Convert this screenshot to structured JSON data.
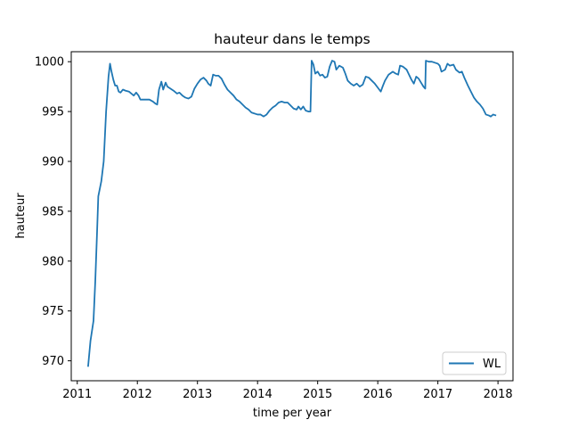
{
  "chart_data": {
    "type": "line",
    "title": "hauteur dans le temps",
    "xlabel": "time per year",
    "ylabel": "hauteur",
    "xlim": [
      2010.9,
      2018.25
    ],
    "ylim": [
      968,
      1001
    ],
    "x_ticks": [
      2011,
      2012,
      2013,
      2014,
      2015,
      2016,
      2017,
      2018
    ],
    "x_tick_labels": [
      "2011",
      "2012",
      "2013",
      "2014",
      "2015",
      "2016",
      "2017",
      "2018"
    ],
    "y_ticks": [
      970,
      975,
      980,
      985,
      990,
      995,
      1000
    ],
    "y_tick_labels": [
      "970",
      "975",
      "980",
      "985",
      "990",
      "995",
      "1000"
    ],
    "grid": false,
    "legend_position": "bottom-right",
    "series": [
      {
        "name": "WL",
        "color": "#1f77b4",
        "points": [
          [
            2011.18,
            969.4
          ],
          [
            2011.22,
            972.0
          ],
          [
            2011.27,
            974.0
          ],
          [
            2011.3,
            978.0
          ],
          [
            2011.33,
            983.0
          ],
          [
            2011.35,
            986.5
          ],
          [
            2011.4,
            988.0
          ],
          [
            2011.44,
            990.0
          ],
          [
            2011.48,
            995.0
          ],
          [
            2011.52,
            998.5
          ],
          [
            2011.545,
            999.8
          ],
          [
            2011.57,
            999.0
          ],
          [
            2011.6,
            998.2
          ],
          [
            2011.63,
            997.6
          ],
          [
            2011.66,
            997.6
          ],
          [
            2011.69,
            997.0
          ],
          [
            2011.72,
            996.9
          ],
          [
            2011.76,
            997.2
          ],
          [
            2011.8,
            997.1
          ],
          [
            2011.86,
            997.0
          ],
          [
            2011.9,
            996.8
          ],
          [
            2011.94,
            996.6
          ],
          [
            2011.98,
            996.9
          ],
          [
            2012.02,
            996.6
          ],
          [
            2012.05,
            996.2
          ],
          [
            2012.1,
            996.2
          ],
          [
            2012.2,
            996.2
          ],
          [
            2012.26,
            996.0
          ],
          [
            2012.3,
            995.8
          ],
          [
            2012.33,
            995.7
          ],
          [
            2012.36,
            997.2
          ],
          [
            2012.4,
            998.0
          ],
          [
            2012.43,
            997.2
          ],
          [
            2012.47,
            997.9
          ],
          [
            2012.5,
            997.5
          ],
          [
            2012.55,
            997.3
          ],
          [
            2012.6,
            997.1
          ],
          [
            2012.66,
            996.8
          ],
          [
            2012.7,
            996.9
          ],
          [
            2012.75,
            996.6
          ],
          [
            2012.8,
            996.4
          ],
          [
            2012.85,
            996.3
          ],
          [
            2012.9,
            996.5
          ],
          [
            2012.95,
            997.3
          ],
          [
            2013.0,
            997.8
          ],
          [
            2013.05,
            998.2
          ],
          [
            2013.1,
            998.4
          ],
          [
            2013.15,
            998.1
          ],
          [
            2013.18,
            997.8
          ],
          [
            2013.22,
            997.6
          ],
          [
            2013.26,
            998.7
          ],
          [
            2013.3,
            998.6
          ],
          [
            2013.35,
            998.6
          ],
          [
            2013.4,
            998.3
          ],
          [
            2013.45,
            997.7
          ],
          [
            2013.5,
            997.2
          ],
          [
            2013.55,
            996.9
          ],
          [
            2013.6,
            996.6
          ],
          [
            2013.65,
            996.2
          ],
          [
            2013.7,
            996.0
          ],
          [
            2013.75,
            995.7
          ],
          [
            2013.8,
            995.4
          ],
          [
            2013.85,
            995.2
          ],
          [
            2013.9,
            994.9
          ],
          [
            2014.0,
            994.7
          ],
          [
            2014.05,
            994.7
          ],
          [
            2014.1,
            994.5
          ],
          [
            2014.15,
            994.7
          ],
          [
            2014.2,
            995.1
          ],
          [
            2014.25,
            995.4
          ],
          [
            2014.3,
            995.6
          ],
          [
            2014.35,
            995.9
          ],
          [
            2014.4,
            996.0
          ],
          [
            2014.45,
            995.9
          ],
          [
            2014.5,
            995.9
          ],
          [
            2014.55,
            995.6
          ],
          [
            2014.6,
            995.3
          ],
          [
            2014.65,
            995.2
          ],
          [
            2014.68,
            995.5
          ],
          [
            2014.72,
            995.2
          ],
          [
            2014.76,
            995.5
          ],
          [
            2014.8,
            995.1
          ],
          [
            2014.85,
            995.0
          ],
          [
            2014.88,
            995.0
          ],
          [
            2014.9,
            1000.1
          ],
          [
            2014.93,
            999.7
          ],
          [
            2014.96,
            998.8
          ],
          [
            2015.0,
            999.0
          ],
          [
            2015.04,
            998.6
          ],
          [
            2015.08,
            998.7
          ],
          [
            2015.12,
            998.4
          ],
          [
            2015.16,
            998.5
          ],
          [
            2015.2,
            999.5
          ],
          [
            2015.24,
            1000.1
          ],
          [
            2015.28,
            1000.0
          ],
          [
            2015.31,
            999.2
          ],
          [
            2015.36,
            999.6
          ],
          [
            2015.42,
            999.4
          ],
          [
            2015.46,
            998.8
          ],
          [
            2015.5,
            998.1
          ],
          [
            2015.55,
            997.8
          ],
          [
            2015.6,
            997.6
          ],
          [
            2015.65,
            997.8
          ],
          [
            2015.7,
            997.5
          ],
          [
            2015.75,
            997.7
          ],
          [
            2015.8,
            998.5
          ],
          [
            2015.85,
            998.4
          ],
          [
            2015.9,
            998.1
          ],
          [
            2015.95,
            997.8
          ],
          [
            2016.0,
            997.4
          ],
          [
            2016.05,
            997.0
          ],
          [
            2016.08,
            997.5
          ],
          [
            2016.12,
            998.1
          ],
          [
            2016.18,
            998.7
          ],
          [
            2016.25,
            999.0
          ],
          [
            2016.3,
            998.8
          ],
          [
            2016.34,
            998.7
          ],
          [
            2016.37,
            999.6
          ],
          [
            2016.42,
            999.5
          ],
          [
            2016.48,
            999.2
          ],
          [
            2016.52,
            998.7
          ],
          [
            2016.56,
            998.2
          ],
          [
            2016.6,
            997.8
          ],
          [
            2016.64,
            998.5
          ],
          [
            2016.68,
            998.3
          ],
          [
            2016.72,
            997.9
          ],
          [
            2016.76,
            997.5
          ],
          [
            2016.79,
            997.3
          ],
          [
            2016.8,
            1000.1
          ],
          [
            2016.85,
            1000.0
          ],
          [
            2016.9,
            1000.0
          ],
          [
            2016.95,
            999.9
          ],
          [
            2017.0,
            999.8
          ],
          [
            2017.03,
            999.6
          ],
          [
            2017.06,
            999.0
          ],
          [
            2017.12,
            999.2
          ],
          [
            2017.16,
            999.8
          ],
          [
            2017.2,
            999.6
          ],
          [
            2017.26,
            999.7
          ],
          [
            2017.3,
            999.2
          ],
          [
            2017.36,
            998.9
          ],
          [
            2017.4,
            999.0
          ],
          [
            2017.44,
            998.4
          ],
          [
            2017.5,
            997.6
          ],
          [
            2017.55,
            997.0
          ],
          [
            2017.6,
            996.4
          ],
          [
            2017.65,
            996.0
          ],
          [
            2017.7,
            995.7
          ],
          [
            2017.75,
            995.3
          ],
          [
            2017.8,
            994.7
          ],
          [
            2017.85,
            994.6
          ],
          [
            2017.88,
            994.5
          ],
          [
            2017.92,
            994.7
          ],
          [
            2017.97,
            994.6
          ]
        ]
      }
    ]
  }
}
